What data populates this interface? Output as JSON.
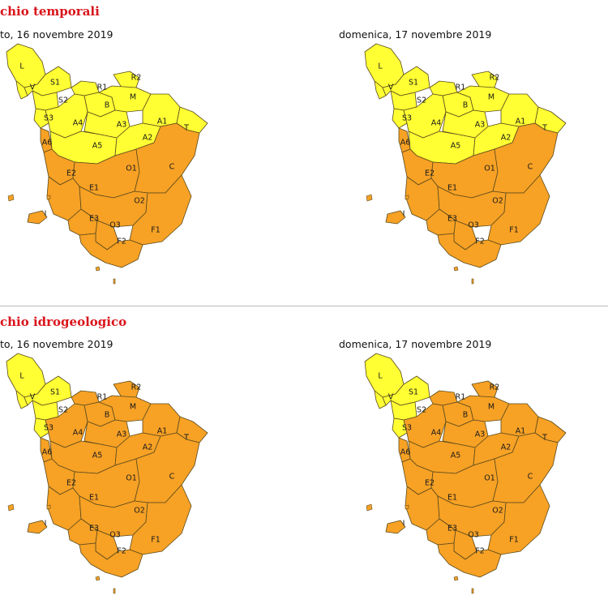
{
  "sections": [
    {
      "title": "chio temporali",
      "maps": [
        {
          "date": "to, 16 novembre 2019",
          "yellow_zones": [
            "L",
            "V",
            "S1",
            "S2",
            "S3",
            "R1",
            "R2",
            "B",
            "M",
            "A4",
            "A3",
            "A1",
            "T",
            "A5",
            "A2"
          ]
        },
        {
          "date": "domenica, 17 novembre 2019",
          "yellow_zones": [
            "L",
            "V",
            "S1",
            "S2",
            "S3",
            "R1",
            "R2",
            "B",
            "M",
            "A4",
            "A3",
            "A1",
            "T",
            "A5",
            "A2"
          ]
        }
      ]
    },
    {
      "title": "chio idrogeologico",
      "maps": [
        {
          "date": "to, 16 novembre 2019",
          "yellow_zones": [
            "L",
            "V",
            "S1",
            "S2",
            "S3"
          ]
        },
        {
          "date": "domenica, 17 novembre 2019",
          "yellow_zones": [
            "L",
            "V",
            "S1",
            "S2",
            "S3"
          ]
        }
      ]
    }
  ],
  "colors": {
    "yellow": "#ffff33",
    "orange": "#f7a125",
    "border": "#5a4a1a",
    "title_red": "#d9141b"
  },
  "zones": [
    "L",
    "V",
    "S1",
    "S2",
    "R1",
    "R2",
    "B",
    "M",
    "S3",
    "A4",
    "A3",
    "A1",
    "T",
    "A6",
    "A5",
    "A2",
    "E2",
    "O1",
    "C",
    "E1",
    "O2",
    "I",
    "E3",
    "O3",
    "F1",
    "F2"
  ]
}
